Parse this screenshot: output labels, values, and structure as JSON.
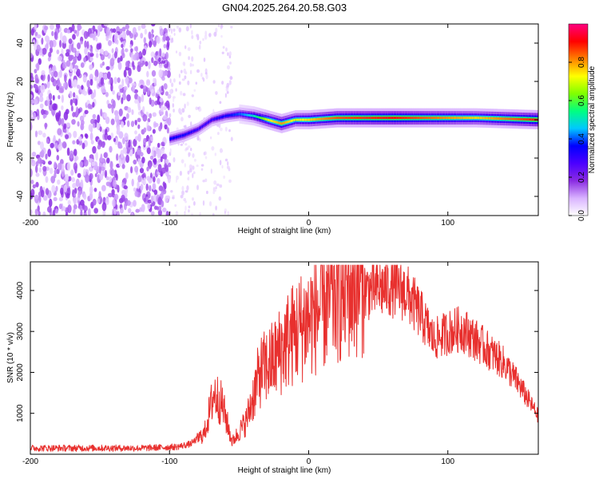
{
  "figure_title": "GN04.2025.264.20.58.G03",
  "chart_data": [
    {
      "type": "heatmap",
      "title": "GN04.2025.264.20.58.G03",
      "xlabel": "Height of straight line (km)",
      "ylabel": "Frequency (Hz)",
      "xlim": [
        -200,
        165
      ],
      "ylim": [
        -50,
        50
      ],
      "xticks": [
        -200,
        -100,
        0,
        100
      ],
      "yticks": [
        -40,
        -20,
        0,
        20,
        40
      ],
      "colorbar": {
        "label": "Normalized spectral amplitude",
        "range": [
          0,
          1
        ],
        "ticks": [
          0.0,
          0.2,
          0.4,
          0.6,
          0.8
        ],
        "tick_labels": [
          "0.0",
          "0.2",
          "0.4",
          "0.6",
          "0.8"
        ],
        "colormap": [
          "#ffffff",
          "#d9b3ff",
          "#8a2be2",
          "#4b00ff",
          "#0000ff",
          "#00c8ff",
          "#00ff80",
          "#80ff00",
          "#ffff00",
          "#ff8000",
          "#ff0000",
          "#ff0080"
        ]
      },
      "noise_region_x": [
        -200,
        -100
      ],
      "sparse_region_x": [
        -100,
        -55
      ],
      "ridge": [
        {
          "x": -100,
          "y": -10,
          "amp": 0.35
        },
        {
          "x": -90,
          "y": -8,
          "amp": 0.35
        },
        {
          "x": -80,
          "y": -5,
          "amp": 0.3
        },
        {
          "x": -70,
          "y": 0,
          "amp": 0.3
        },
        {
          "x": -60,
          "y": 2,
          "amp": 0.35
        },
        {
          "x": -50,
          "y": 3,
          "amp": 0.4
        },
        {
          "x": -40,
          "y": 2,
          "amp": 0.5
        },
        {
          "x": -30,
          "y": 0,
          "amp": 0.7
        },
        {
          "x": -20,
          "y": -2,
          "amp": 0.8
        },
        {
          "x": -10,
          "y": 0,
          "amp": 0.7
        },
        {
          "x": 0,
          "y": 0,
          "amp": 0.75
        },
        {
          "x": 20,
          "y": 1,
          "amp": 0.85
        },
        {
          "x": 60,
          "y": 1,
          "amp": 0.9
        },
        {
          "x": 80,
          "y": 1,
          "amp": 0.85
        },
        {
          "x": 120,
          "y": 1,
          "amp": 0.75
        },
        {
          "x": 165,
          "y": 0,
          "amp": 0.9
        }
      ]
    },
    {
      "type": "line",
      "xlabel": "Height of straight line (km)",
      "ylabel": "SNR (10 * v/v)",
      "xlim": [
        -200,
        165
      ],
      "ylim": [
        0,
        4700
      ],
      "xticks": [
        -200,
        -100,
        0,
        100
      ],
      "yticks": [
        1000,
        2000,
        3000,
        4000
      ],
      "color": "#e8302e",
      "envelope": [
        {
          "x": -200,
          "y": 150
        },
        {
          "x": -120,
          "y": 150
        },
        {
          "x": -95,
          "y": 180
        },
        {
          "x": -85,
          "y": 250
        },
        {
          "x": -75,
          "y": 500
        },
        {
          "x": -68,
          "y": 1500
        },
        {
          "x": -62,
          "y": 1200
        },
        {
          "x": -55,
          "y": 300
        },
        {
          "x": -45,
          "y": 800
        },
        {
          "x": -35,
          "y": 2000
        },
        {
          "x": -25,
          "y": 2300
        },
        {
          "x": -15,
          "y": 2800
        },
        {
          "x": 0,
          "y": 3300
        },
        {
          "x": 20,
          "y": 3900
        },
        {
          "x": 40,
          "y": 4300
        },
        {
          "x": 60,
          "y": 4400
        },
        {
          "x": 70,
          "y": 4250
        },
        {
          "x": 80,
          "y": 3700
        },
        {
          "x": 90,
          "y": 3000
        },
        {
          "x": 100,
          "y": 3200
        },
        {
          "x": 110,
          "y": 3300
        },
        {
          "x": 120,
          "y": 3000
        },
        {
          "x": 130,
          "y": 2700
        },
        {
          "x": 140,
          "y": 2400
        },
        {
          "x": 150,
          "y": 1900
        },
        {
          "x": 165,
          "y": 1000
        }
      ]
    }
  ]
}
